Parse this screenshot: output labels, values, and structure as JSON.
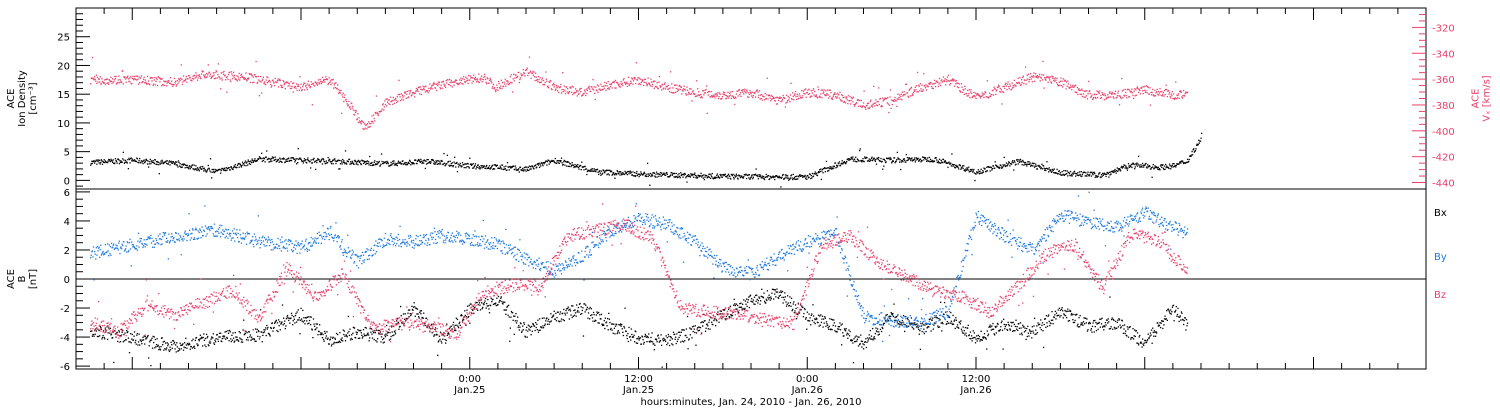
{
  "chart_data": [
    {
      "type": "scatter",
      "ylabel_lines": [
        "ACE",
        "Ion Density",
        "[cm⁻³]"
      ],
      "ylim": [
        -1.5,
        30
      ],
      "yticks": [
        0,
        5,
        10,
        15,
        20,
        25
      ],
      "y2label_lines": [
        "ACE",
        "Vₓ [km/s]"
      ],
      "y2lim": [
        -445,
        -305
      ],
      "y2ticks": [
        -440,
        -420,
        -400,
        -380,
        -360,
        -340,
        -320
      ],
      "colors": {
        "density": "#000000",
        "velocity": "#e8426c"
      },
      "series": [
        {
          "axis": "left",
          "color": "#000000",
          "x": [
            -27,
            -24,
            -21,
            -18,
            -15,
            -12,
            -9,
            -6,
            -3,
            0,
            2,
            4,
            6,
            9,
            12,
            15,
            18,
            21,
            24,
            27,
            30,
            33,
            36,
            39,
            42,
            45,
            47,
            49,
            50,
            51,
            52
          ],
          "y": [
            3.2,
            3.6,
            3.0,
            1.6,
            3.8,
            3.6,
            3.4,
            3.0,
            3.4,
            2.6,
            2.4,
            2.0,
            3.6,
            1.6,
            1.2,
            1.0,
            0.8,
            0.7,
            0.7,
            3.8,
            3.6,
            3.8,
            1.6,
            3.4,
            1.4,
            1.0,
            2.8,
            2.4,
            2.6,
            3.5,
            7.5
          ]
        },
        {
          "axis": "right",
          "color": "#e8426c",
          "x": [
            -27,
            -24,
            -21,
            -19,
            -16,
            -14,
            -12,
            -10,
            -8.5,
            -7.5,
            -6,
            -4,
            -2,
            0,
            1,
            1.8,
            2.8,
            4,
            6,
            8,
            10,
            12,
            14,
            16,
            18,
            20,
            22,
            24,
            26,
            28,
            30,
            32,
            34,
            36,
            38,
            40,
            42,
            44,
            46,
            48,
            50,
            51
          ],
          "y": [
            -360,
            -360,
            -362,
            -356,
            -358,
            -362,
            -366,
            -360,
            -380,
            -398,
            -378,
            -370,
            -364,
            -360,
            -358,
            -366,
            -360,
            -354,
            -366,
            -370,
            -364,
            -360,
            -366,
            -370,
            -372,
            -370,
            -376,
            -370,
            -372,
            -380,
            -376,
            -366,
            -360,
            -374,
            -366,
            -358,
            -362,
            -372,
            -372,
            -368,
            -372,
            -370
          ]
        }
      ]
    },
    {
      "type": "scatter",
      "ylabel_lines": [
        "ACE",
        "B",
        "[nT]"
      ],
      "ylim": [
        -6.2,
        6.2
      ],
      "yticks": [
        -6,
        -4,
        -2,
        0,
        2,
        4,
        6
      ],
      "zero_line": true,
      "legend_position": "right",
      "xlim": [
        -28,
        68
      ],
      "xticks": [
        0,
        12,
        24,
        36
      ],
      "xtick_labels": [
        [
          "0:00",
          "Jan.25"
        ],
        [
          "12:00",
          "Jan.25"
        ],
        [
          "0:00",
          "Jan.26"
        ],
        [
          "12:00",
          "Jan.26"
        ]
      ],
      "xlabel": "hours:minutes, Jan. 24, 2010 - Jan. 26, 2010",
      "series": [
        {
          "name": "Bx",
          "color": "#000000",
          "x": [
            -27,
            -24,
            -21,
            -18,
            -15,
            -12,
            -10,
            -8,
            -6,
            -4,
            -2,
            0,
            2,
            4,
            6,
            8,
            10,
            12,
            14,
            16,
            18,
            20,
            22,
            24,
            26,
            28,
            30,
            32,
            34,
            36,
            38,
            40,
            42,
            44,
            46,
            48,
            50,
            51
          ],
          "y": [
            -3.5,
            -4.0,
            -4.6,
            -4.0,
            -3.8,
            -2.4,
            -4.2,
            -3.6,
            -4.0,
            -2.0,
            -4.2,
            -2.0,
            -1.4,
            -3.6,
            -2.6,
            -2.0,
            -3.2,
            -4.0,
            -4.2,
            -3.6,
            -2.4,
            -1.4,
            -1.0,
            -2.6,
            -3.2,
            -4.4,
            -2.4,
            -3.4,
            -2.6,
            -4.0,
            -3.0,
            -3.6,
            -2.2,
            -3.2,
            -3.0,
            -4.4,
            -2.0,
            -3.2
          ]
        },
        {
          "name": "By",
          "color": "#1f7ae0",
          "x": [
            -27,
            -24,
            -21,
            -18,
            -15,
            -12,
            -10,
            -8,
            -6,
            -4,
            -2,
            0,
            2,
            4,
            6,
            8,
            10,
            12,
            14,
            16,
            18,
            20,
            22,
            24,
            26,
            28,
            30,
            32,
            34,
            36,
            38,
            40,
            42,
            44,
            46,
            48,
            50,
            51
          ],
          "y": [
            1.8,
            2.4,
            3.0,
            3.4,
            2.6,
            2.2,
            3.2,
            1.2,
            2.8,
            2.6,
            3.0,
            2.8,
            2.4,
            1.4,
            0.6,
            1.6,
            3.4,
            4.2,
            3.8,
            2.6,
            0.8,
            0.4,
            1.6,
            2.6,
            3.2,
            -2.6,
            -2.8,
            -3.0,
            -2.2,
            4.4,
            3.0,
            2.0,
            4.4,
            4.0,
            3.6,
            4.6,
            3.6,
            3.2
          ]
        },
        {
          "name": "Bz",
          "color": "#e8426c",
          "x": [
            -27,
            -25,
            -23,
            -21,
            -19,
            -17,
            -15,
            -13,
            -11,
            -9,
            -7,
            -5,
            -3,
            -1,
            1,
            3,
            5,
            7,
            9,
            11,
            13,
            15,
            17,
            19,
            21,
            23,
            25,
            27,
            29,
            31,
            33,
            35,
            37,
            39,
            41,
            43,
            45,
            47,
            49,
            51
          ],
          "y": [
            -3.0,
            -3.6,
            -1.8,
            -2.4,
            -1.6,
            -0.8,
            -2.6,
            0.8,
            -1.2,
            0.4,
            -3.4,
            -3.0,
            -3.2,
            -3.8,
            -0.8,
            -0.4,
            -0.4,
            3.0,
            3.4,
            3.8,
            2.8,
            -2.0,
            -2.2,
            -2.4,
            -2.8,
            -3.0,
            2.4,
            3.0,
            1.2,
            0.2,
            -0.8,
            -1.2,
            -2.2,
            -0.4,
            1.8,
            2.4,
            -0.6,
            3.2,
            2.6,
            0.6
          ]
        }
      ]
    }
  ]
}
